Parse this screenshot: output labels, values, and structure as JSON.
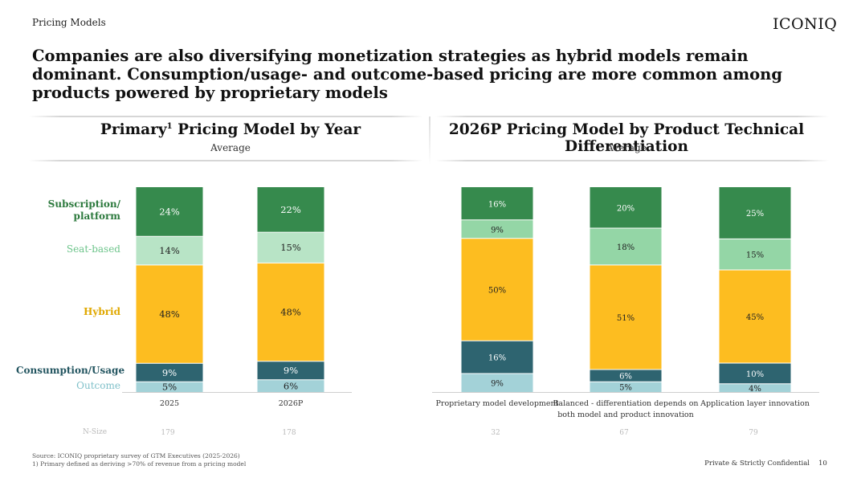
{
  "header": {
    "section": "Pricing Models",
    "logo": "ICONIQ",
    "headline": "Companies are also diversifying monetization strategies as hybrid models remain dominant. Consumption/usage- and outcome-based pricing are more common among products powered by proprietary models"
  },
  "colors": {
    "subscription": "#368a4d",
    "seat": "#b8e4c6",
    "seat_alt": "#94d6a6",
    "hybrid": "#fdbd20",
    "consumption": "#2e6470",
    "outcome": "#a3d2d8",
    "legend_subscription": "#2d7a3e",
    "legend_seat": "#6cc48a",
    "legend_hybrid": "#e0a800",
    "legend_consumption": "#235560",
    "legend_outcome": "#7fc0c9"
  },
  "left_panel": {
    "title": "Primary",
    "title_sup": "1",
    "title_rest": " Pricing Model by Year",
    "subtitle": "Average"
  },
  "right_panel": {
    "title": "2026P Pricing Model by Product Technical Differentiation",
    "subtitle": "Average"
  },
  "legend": {
    "subscription": "Subscription/ platform",
    "seat": "Seat-based",
    "hybrid": "Hybrid",
    "consumption": "Consumption/Usage",
    "outcome": "Outcome"
  },
  "nsize_label": "N-Size",
  "chart_data": [
    {
      "type": "bar",
      "stacked": true,
      "title": "Primary Pricing Model by Year",
      "subtitle": "Average",
      "categories": [
        "2025",
        "2026P"
      ],
      "series": [
        {
          "name": "Outcome",
          "values": [
            5,
            6
          ]
        },
        {
          "name": "Consumption/Usage",
          "values": [
            9,
            9
          ]
        },
        {
          "name": "Hybrid",
          "values": [
            48,
            48
          ]
        },
        {
          "name": "Seat-based",
          "values": [
            14,
            15
          ]
        },
        {
          "name": "Subscription/ platform",
          "values": [
            24,
            22
          ]
        }
      ],
      "labels": [
        [
          "5%",
          "9%",
          "48%",
          "14%",
          "24%"
        ],
        [
          "6%",
          "9%",
          "48%",
          "15%",
          "22%"
        ]
      ],
      "n_size": [
        "179",
        "178"
      ],
      "ylim": [
        0,
        100
      ]
    },
    {
      "type": "bar",
      "stacked": true,
      "title": "2026P Pricing Model by Product Technical Differentiation",
      "subtitle": "Average",
      "categories": [
        "Proprietary model development",
        "Balanced - differentiation depends on both model and product innovation",
        "Application layer innovation"
      ],
      "category_lines": [
        [
          "Proprietary model development"
        ],
        [
          "Balanced - differentiation depends on",
          "both model and product innovation"
        ],
        [
          "Application layer innovation"
        ]
      ],
      "series": [
        {
          "name": "Outcome",
          "values": [
            9,
            5,
            4
          ]
        },
        {
          "name": "Consumption/Usage",
          "values": [
            16,
            6,
            10
          ]
        },
        {
          "name": "Hybrid",
          "values": [
            50,
            51,
            45
          ]
        },
        {
          "name": "Seat-based",
          "values": [
            9,
            18,
            15
          ]
        },
        {
          "name": "Subscription/ platform",
          "values": [
            16,
            20,
            25
          ]
        }
      ],
      "labels": [
        [
          "9%",
          "16%",
          "50%",
          "9%",
          "16%"
        ],
        [
          "5%",
          "6%",
          "51%",
          "18%",
          "20%"
        ],
        [
          "4%",
          "10%",
          "45%",
          "15%",
          "25%"
        ]
      ],
      "n_size": [
        "32",
        "67",
        "79"
      ],
      "ylim": [
        0,
        100
      ]
    }
  ],
  "footer": {
    "source": "Source: ICONIQ proprietary survey of GTM Executives (2025-2026)",
    "note": "1) Primary defined as deriving >70% of revenue from a pricing model",
    "confidential": "Private & Strictly Confidential",
    "page": "10"
  }
}
